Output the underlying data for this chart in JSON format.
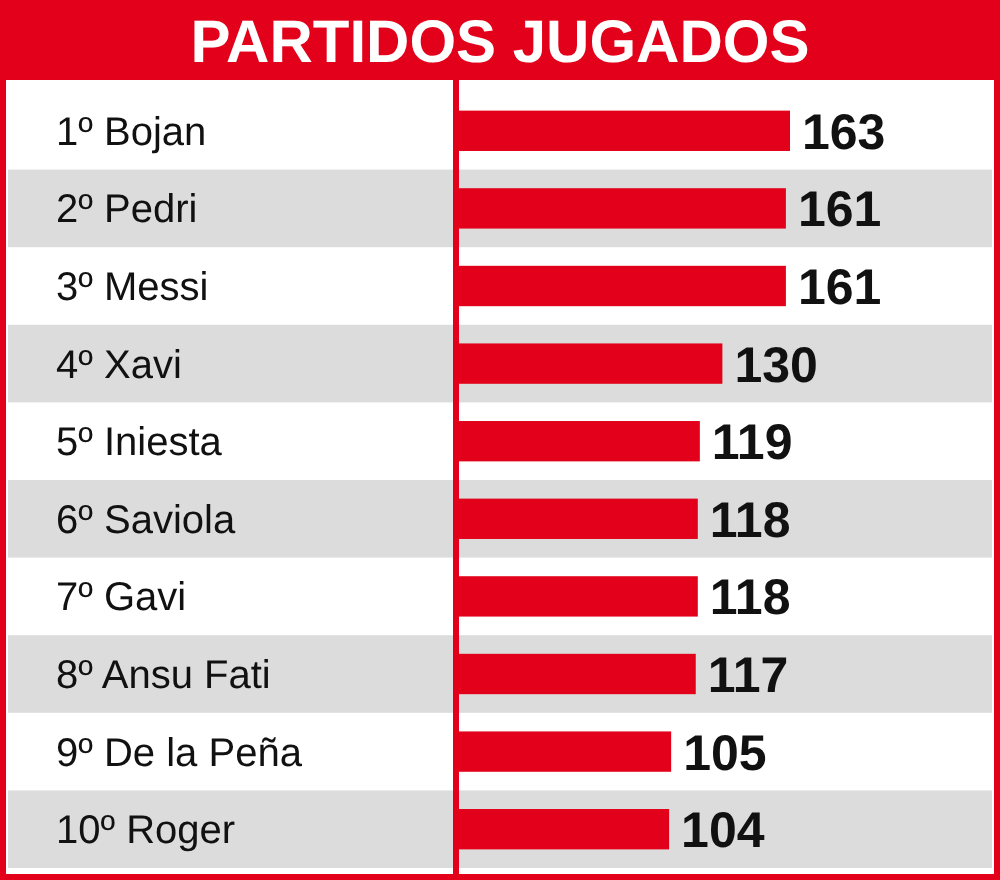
{
  "chart_data": {
    "type": "bar",
    "orientation": "horizontal",
    "title": "PARTIDOS JUGADOS",
    "categories": [
      "1º Bojan",
      "2º Pedri",
      "3º Messi",
      "4º Xavi",
      "5º Iniesta",
      "6º Saviola",
      "7º Gavi",
      "8º Ansu Fati",
      "9º De la Peña",
      "10º Roger"
    ],
    "values": [
      163,
      161,
      161,
      130,
      119,
      118,
      118,
      117,
      105,
      104
    ],
    "color": "#e2001a",
    "data_labels": true
  }
}
